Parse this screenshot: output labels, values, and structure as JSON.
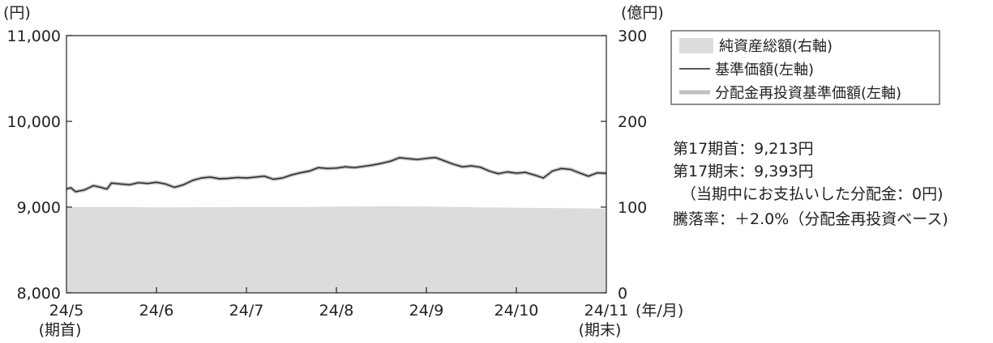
{
  "chart_data": {
    "type": "line",
    "y_left": {
      "unit_label": "(円)",
      "range": [
        8000,
        11000
      ],
      "ticks": [
        8000,
        9000,
        10000,
        11000
      ],
      "tick_labels": [
        "8,000",
        "9,000",
        "10,000",
        "11,000"
      ]
    },
    "y_right": {
      "unit_label": "(億円)",
      "range": [
        0,
        300
      ],
      "ticks": [
        0,
        100,
        200,
        300
      ],
      "tick_labels": [
        "0",
        "100",
        "200",
        "300"
      ]
    },
    "x_axis": {
      "range": [
        0,
        6
      ],
      "ticks": [
        {
          "pos": 0,
          "label": "24/5",
          "sub": "(期首)"
        },
        {
          "pos": 1,
          "label": "24/6",
          "sub": ""
        },
        {
          "pos": 2,
          "label": "24/7",
          "sub": ""
        },
        {
          "pos": 3,
          "label": "24/8",
          "sub": ""
        },
        {
          "pos": 4,
          "label": "24/9",
          "sub": ""
        },
        {
          "pos": 5,
          "label": "24/10",
          "sub": ""
        },
        {
          "pos": 6,
          "label": "24/11",
          "sub": "(期末)"
        }
      ],
      "unit_label": "(年/月)"
    },
    "legend": {
      "placement": "top-right",
      "entries": [
        {
          "label": "純資産総額(右軸)",
          "symbol": "area",
          "color": "#dcdcdc"
        },
        {
          "label": "基準価額(左軸)",
          "symbol": "line",
          "color": "#222222"
        },
        {
          "label": "分配金再投資基準価額(左軸)",
          "symbol": "line",
          "color": "#c0c0c0"
        }
      ]
    },
    "series": [
      {
        "name": "純資産総額(右軸)",
        "axis": "right",
        "kind": "area",
        "color": "#dcdcdc",
        "x": [
          0,
          0.5,
          1.0,
          1.5,
          2.0,
          2.5,
          3.0,
          3.5,
          4.0,
          4.5,
          5.0,
          5.5,
          6.0
        ],
        "values": [
          100.2,
          100.3,
          99.8,
          99.9,
          100.0,
          100.1,
          100.6,
          100.9,
          100.8,
          99.9,
          99.3,
          98.9,
          98.2
        ]
      },
      {
        "name": "基準価額(左軸)",
        "axis": "left",
        "kind": "line",
        "color": "#222222",
        "x": [
          0,
          0.05,
          0.1,
          0.2,
          0.3,
          0.38,
          0.45,
          0.5,
          0.6,
          0.7,
          0.8,
          0.9,
          1.0,
          1.1,
          1.2,
          1.3,
          1.4,
          1.5,
          1.6,
          1.7,
          1.8,
          1.9,
          2.0,
          2.1,
          2.2,
          2.3,
          2.4,
          2.5,
          2.6,
          2.7,
          2.8,
          2.9,
          3.0,
          3.1,
          3.2,
          3.3,
          3.4,
          3.5,
          3.6,
          3.7,
          3.8,
          3.9,
          4.0,
          4.1,
          4.2,
          4.3,
          4.4,
          4.5,
          4.6,
          4.7,
          4.8,
          4.9,
          5.0,
          5.1,
          5.2,
          5.3,
          5.4,
          5.5,
          5.6,
          5.7,
          5.8,
          5.9,
          6.0
        ],
        "values": [
          9213,
          9225,
          9180,
          9200,
          9250,
          9230,
          9210,
          9280,
          9270,
          9260,
          9285,
          9275,
          9290,
          9270,
          9230,
          9260,
          9310,
          9340,
          9350,
          9330,
          9335,
          9345,
          9340,
          9350,
          9360,
          9325,
          9340,
          9375,
          9400,
          9420,
          9460,
          9450,
          9455,
          9470,
          9460,
          9475,
          9490,
          9510,
          9535,
          9575,
          9565,
          9555,
          9568,
          9578,
          9540,
          9500,
          9470,
          9480,
          9465,
          9420,
          9390,
          9410,
          9395,
          9405,
          9375,
          9340,
          9420,
          9450,
          9440,
          9400,
          9360,
          9400,
          9393
        ]
      },
      {
        "name": "分配金再投資基準価額(左軸)",
        "axis": "left",
        "kind": "line",
        "color": "#c0c0c0",
        "x": [
          0,
          0.05,
          0.1,
          0.2,
          0.3,
          0.38,
          0.45,
          0.5,
          0.6,
          0.7,
          0.8,
          0.9,
          1.0,
          1.1,
          1.2,
          1.3,
          1.4,
          1.5,
          1.6,
          1.7,
          1.8,
          1.9,
          2.0,
          2.1,
          2.2,
          2.3,
          2.4,
          2.5,
          2.6,
          2.7,
          2.8,
          2.9,
          3.0,
          3.1,
          3.2,
          3.3,
          3.4,
          3.5,
          3.6,
          3.7,
          3.8,
          3.9,
          4.0,
          4.1,
          4.2,
          4.3,
          4.4,
          4.5,
          4.6,
          4.7,
          4.8,
          4.9,
          5.0,
          5.1,
          5.2,
          5.3,
          5.4,
          5.5,
          5.6,
          5.7,
          5.8,
          5.9,
          6.0
        ],
        "values": [
          9213,
          9225,
          9180,
          9200,
          9250,
          9230,
          9210,
          9280,
          9270,
          9260,
          9285,
          9275,
          9290,
          9270,
          9230,
          9260,
          9310,
          9340,
          9350,
          9330,
          9335,
          9345,
          9340,
          9350,
          9360,
          9325,
          9340,
          9375,
          9400,
          9420,
          9460,
          9450,
          9455,
          9470,
          9460,
          9475,
          9490,
          9510,
          9535,
          9575,
          9565,
          9555,
          9568,
          9578,
          9540,
          9500,
          9470,
          9480,
          9465,
          9420,
          9390,
          9410,
          9395,
          9405,
          9375,
          9340,
          9420,
          9450,
          9440,
          9400,
          9360,
          9400,
          9393
        ]
      }
    ],
    "annotations": [
      "第17期首：9,213円",
      "第17期末：9,393円",
      "（当期中にお支払いした分配金：0円)",
      "騰落率：＋2.0%（分配金再投資ベース)"
    ]
  }
}
